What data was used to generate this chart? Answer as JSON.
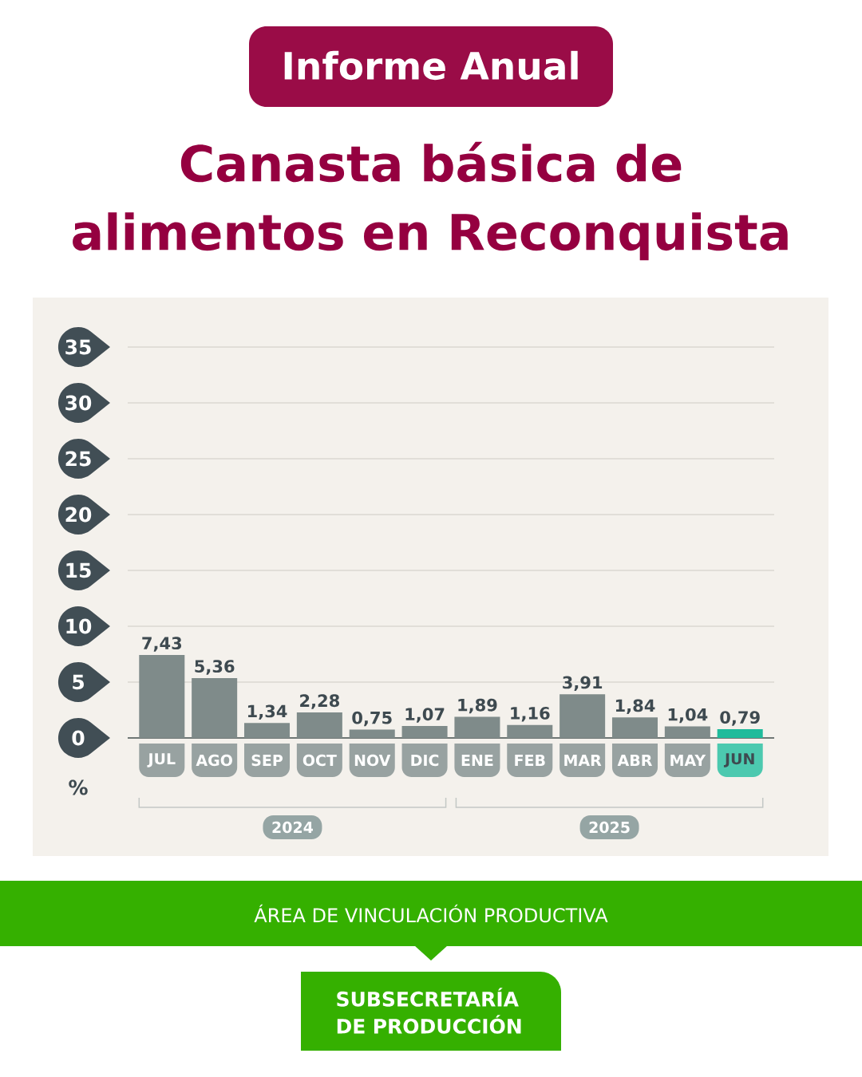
{
  "chart_data": {
    "type": "bar",
    "title": "Canasta básica de alimentos en Reconquista",
    "categories": [
      "JUL",
      "AGO",
      "SEP",
      "OCT",
      "NOV",
      "DIC",
      "ENE",
      "FEB",
      "MAR",
      "ABR",
      "MAY",
      "JUN"
    ],
    "values": [
      7.43,
      5.36,
      1.34,
      2.28,
      0.75,
      1.07,
      1.89,
      1.16,
      3.91,
      1.84,
      1.04,
      0.79
    ],
    "value_labels": [
      "7,43",
      "5,36",
      "1,34",
      "2,28",
      "0,75",
      "1,07",
      "1,89",
      "1,16",
      "3,91",
      "1,84",
      "1,04",
      "0,79"
    ],
    "colors": [
      "#7f8b8a",
      "#7f8b8a",
      "#7f8b8a",
      "#7f8b8a",
      "#7f8b8a",
      "#7f8b8a",
      "#7f8b8a",
      "#7f8b8a",
      "#7f8b8a",
      "#7f8b8a",
      "#7f8b8a",
      "#1fbb9b"
    ],
    "ylabel": "%",
    "ylim": [
      0,
      35
    ],
    "yticks": [
      0,
      5,
      10,
      15,
      20,
      25,
      30,
      35
    ],
    "grid": "y",
    "annotations": [
      "Informe Anual",
      "2024",
      "2025",
      "ÁREA DE VINCULACIÓN PRODUCTIVA",
      "SUBSECRETARÍA DE PRODUCCIÓN"
    ]
  }
}
